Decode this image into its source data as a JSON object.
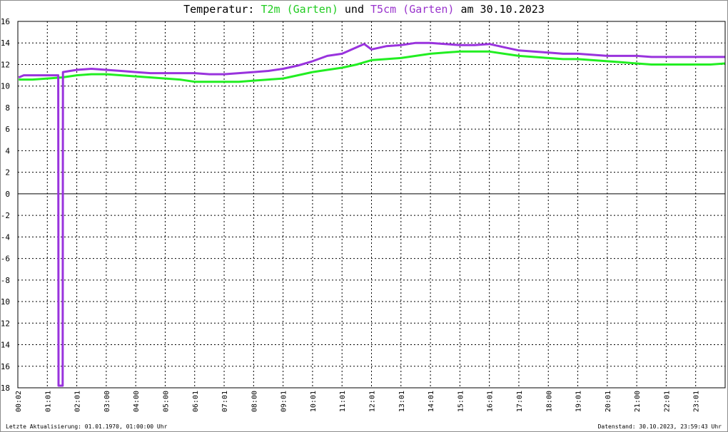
{
  "title": {
    "prefix": "Temperatur: ",
    "series1": "T2m (Garten)",
    "joiner": " und ",
    "series2": "T5cm (Garten)",
    "suffix": " am 30.10.2023"
  },
  "footer": {
    "left": "Letzte Aktualisierung: 01.01.1970, 01:00:00 Uhr",
    "right": "Datenstand: 30.10.2023, 23:59:43 Uhr"
  },
  "colors": {
    "T2m": "#22ee22",
    "T5cm": "#9933dd",
    "grid": "#000000",
    "zero_line": "#000000"
  },
  "chart_data": {
    "type": "line",
    "title": "Temperatur: T2m (Garten) und T5cm (Garten) am 30.10.2023",
    "ylim": [
      -18,
      16
    ],
    "yticks": [
      16,
      14,
      12,
      10,
      8,
      6,
      4,
      2,
      0,
      -2,
      -4,
      -6,
      -8,
      -10,
      -12,
      -14,
      -16,
      -18
    ],
    "ytick_labels": [
      "16",
      "14",
      "12",
      "10",
      "8",
      "6",
      "4",
      "2",
      "0",
      "-2",
      "-4",
      "-6",
      "-8",
      "-10",
      "-12",
      "-14",
      "-16",
      "-18"
    ],
    "xlim_hours": [
      0,
      24
    ],
    "xticks": [
      "00:02",
      "01:01",
      "02:01",
      "03:00",
      "04:00",
      "05:00",
      "06:01",
      "07:01",
      "08:00",
      "09:01",
      "10:01",
      "11:01",
      "12:01",
      "13:01",
      "14:01",
      "15:01",
      "16:01",
      "17:01",
      "18:00",
      "19:01",
      "20:01",
      "21:00",
      "22:01",
      "23:01"
    ],
    "grid": true,
    "series": [
      {
        "name": "T2m (Garten)",
        "x": [
          0.03,
          0.5,
          1.0,
          1.5,
          2.0,
          2.5,
          3.0,
          3.5,
          4.0,
          4.5,
          5.0,
          5.5,
          6.0,
          6.5,
          7.0,
          7.5,
          8.0,
          8.5,
          9.0,
          9.5,
          10.0,
          10.5,
          11.0,
          11.5,
          12.0,
          12.5,
          13.0,
          13.5,
          14.0,
          14.5,
          15.0,
          15.5,
          16.0,
          16.5,
          17.0,
          17.5,
          18.0,
          18.5,
          19.0,
          19.5,
          20.0,
          20.5,
          21.0,
          21.5,
          22.0,
          22.5,
          23.0,
          23.5,
          24.0
        ],
        "y": [
          10.6,
          10.6,
          10.7,
          10.8,
          11.0,
          11.1,
          11.1,
          11.0,
          10.9,
          10.8,
          10.7,
          10.6,
          10.4,
          10.4,
          10.4,
          10.4,
          10.5,
          10.6,
          10.7,
          11.0,
          11.3,
          11.5,
          11.7,
          12.0,
          12.4,
          12.5,
          12.6,
          12.8,
          13.0,
          13.1,
          13.2,
          13.2,
          13.2,
          13.0,
          12.8,
          12.7,
          12.6,
          12.5,
          12.5,
          12.4,
          12.3,
          12.2,
          12.1,
          12.0,
          12.0,
          12.0,
          12.0,
          12.0,
          12.1
        ]
      },
      {
        "name": "T5cm (Garten)",
        "x": [
          0.03,
          0.2,
          0.5,
          1.0,
          1.37,
          1.38,
          1.52,
          1.53,
          2.0,
          2.5,
          3.0,
          3.5,
          4.0,
          4.5,
          5.0,
          5.5,
          6.0,
          6.5,
          7.0,
          7.5,
          8.0,
          8.5,
          9.0,
          9.5,
          10.0,
          10.5,
          11.0,
          11.5,
          11.75,
          12.0,
          12.5,
          13.0,
          13.5,
          14.0,
          14.5,
          15.0,
          15.5,
          16.0,
          16.5,
          17.0,
          17.5,
          18.0,
          18.5,
          19.0,
          19.5,
          20.0,
          20.5,
          21.0,
          21.5,
          22.0,
          22.5,
          23.0,
          23.5,
          24.0
        ],
        "y": [
          10.8,
          11.0,
          11.0,
          11.0,
          11.0,
          -17.8,
          -17.8,
          11.3,
          11.5,
          11.6,
          11.5,
          11.4,
          11.3,
          11.2,
          11.2,
          11.2,
          11.2,
          11.1,
          11.1,
          11.2,
          11.3,
          11.4,
          11.6,
          11.9,
          12.3,
          12.8,
          13.0,
          13.6,
          13.9,
          13.4,
          13.7,
          13.8,
          14.0,
          14.0,
          13.9,
          13.8,
          13.8,
          13.9,
          13.6,
          13.3,
          13.2,
          13.1,
          13.0,
          13.0,
          12.9,
          12.8,
          12.8,
          12.8,
          12.7,
          12.7,
          12.7,
          12.7,
          12.7,
          12.7
        ]
      }
    ]
  }
}
